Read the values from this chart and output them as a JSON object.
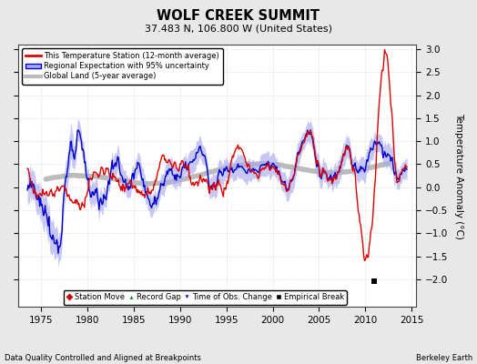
{
  "title": "WOLF CREEK SUMMIT",
  "subtitle": "37.483 N, 106.800 W (United States)",
  "ylabel": "Temperature Anomaly (°C)",
  "xlabel_left": "Data Quality Controlled and Aligned at Breakpoints",
  "xlabel_right": "Berkeley Earth",
  "ylim": [
    -2.6,
    3.1
  ],
  "xlim": [
    1972.5,
    2015.5
  ],
  "xticks": [
    1975,
    1980,
    1985,
    1990,
    1995,
    2000,
    2005,
    2010,
    2015
  ],
  "yticks": [
    -2,
    -1.5,
    -1,
    -0.5,
    0,
    0.5,
    1,
    1.5,
    2,
    2.5,
    3
  ],
  "bg_color": "#e8e8e8",
  "plot_bg_color": "#ffffff",
  "station_color": "#dd0000",
  "regional_color": "#0000cc",
  "regional_fill_color": "#aaaaee",
  "global_color": "#bbbbbb",
  "legend_labels": [
    "This Temperature Station (12-month average)",
    "Regional Expectation with 95% uncertainty",
    "Global Land (5-year average)"
  ],
  "marker_year_empirical": 2011.0,
  "marker_val_empirical": -2.05,
  "seed": 42
}
